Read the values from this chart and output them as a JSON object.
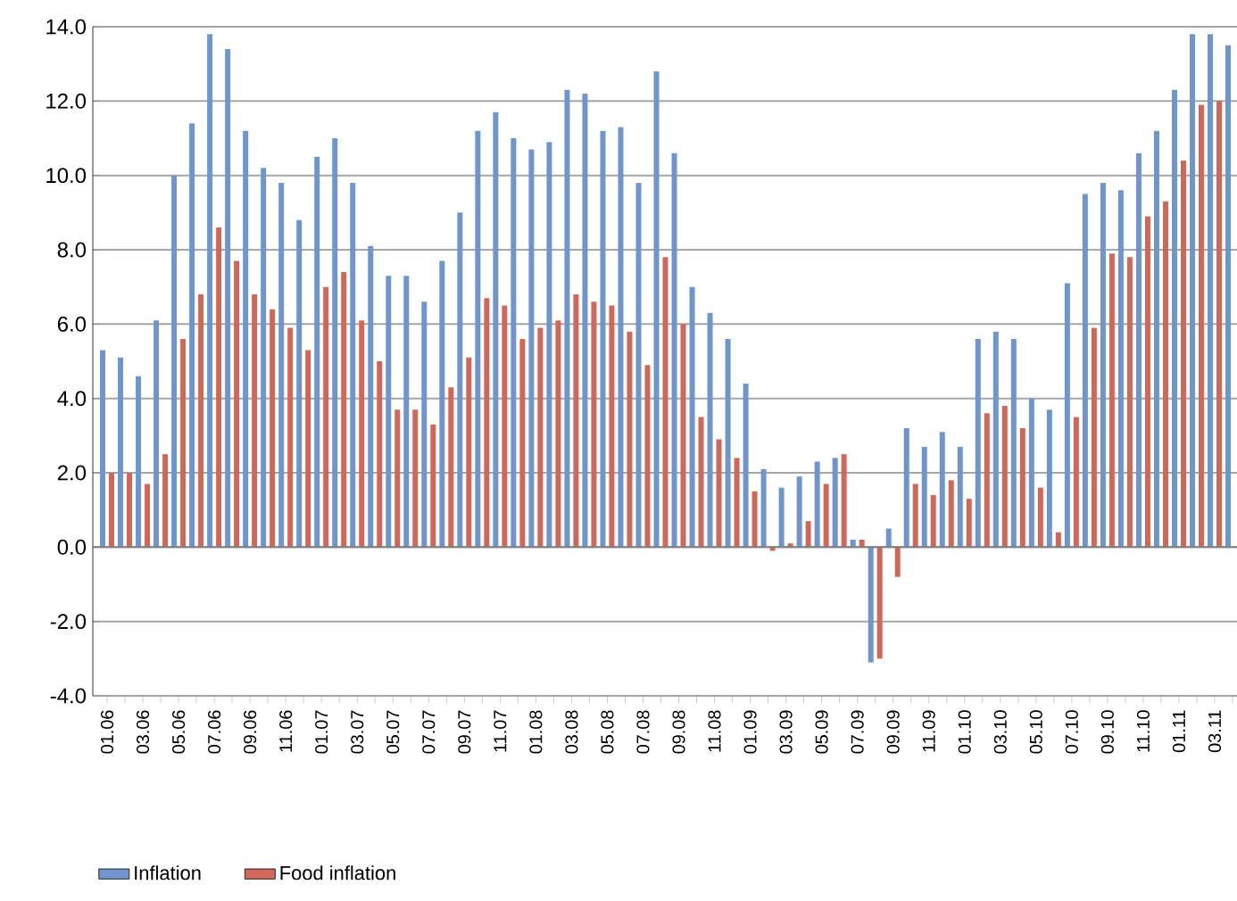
{
  "chart_data": {
    "type": "bar",
    "categories": [
      "01.06",
      null,
      "03.06",
      null,
      "05.06",
      null,
      "07.06",
      null,
      "09.06",
      null,
      "11.06",
      null,
      "01.07",
      null,
      "03.07",
      null,
      "05.07",
      null,
      "07.07",
      null,
      "09.07",
      null,
      "11.07",
      null,
      "01.08",
      null,
      "03.08",
      null,
      "05.08",
      null,
      "07.08",
      null,
      "09.08",
      null,
      "11.08",
      null,
      "01.09",
      null,
      "03.09",
      null,
      "05.09",
      null,
      "07.09",
      null,
      "09.09",
      null,
      "11.09",
      null,
      "01.10",
      null,
      "03.10",
      null,
      "05.10",
      null,
      "07.10",
      null,
      "09.10",
      null,
      "11.10",
      null,
      "01.11",
      null,
      "03.11",
      null
    ],
    "series": [
      {
        "name": "Inflation",
        "color": "#6f95cc",
        "values": [
          5.3,
          5.1,
          4.6,
          6.1,
          10.0,
          11.4,
          13.8,
          13.4,
          11.2,
          10.2,
          9.8,
          8.8,
          10.5,
          11.0,
          9.8,
          8.1,
          7.3,
          7.3,
          6.6,
          7.7,
          9.0,
          11.2,
          11.7,
          11.0,
          10.7,
          10.9,
          12.3,
          12.2,
          11.2,
          11.3,
          9.8,
          12.8,
          10.6,
          7.0,
          6.3,
          5.6,
          4.4,
          2.1,
          1.6,
          1.9,
          2.3,
          2.4,
          0.2,
          -3.1,
          0.5,
          3.2,
          2.7,
          3.1,
          2.7,
          5.6,
          5.8,
          5.6,
          4.0,
          3.7,
          7.1,
          9.5,
          9.8,
          9.6,
          10.6,
          11.2,
          12.3,
          13.8,
          13.8,
          13.5
        ]
      },
      {
        "name": "Food inflation",
        "color": "#d0675b",
        "values": [
          2.0,
          2.0,
          1.7,
          2.5,
          5.6,
          6.8,
          8.6,
          7.7,
          6.8,
          6.4,
          5.9,
          5.3,
          7.0,
          7.4,
          6.1,
          5.0,
          3.7,
          3.7,
          3.3,
          4.3,
          5.1,
          6.7,
          6.5,
          5.6,
          5.9,
          6.1,
          6.8,
          6.6,
          6.5,
          5.8,
          4.9,
          7.8,
          6.0,
          3.5,
          2.9,
          2.4,
          1.5,
          -0.1,
          0.1,
          0.7,
          1.7,
          2.5,
          0.2,
          -3.0,
          -0.8,
          1.7,
          1.4,
          1.8,
          1.3,
          3.6,
          3.8,
          3.2,
          1.6,
          0.4,
          3.5,
          5.9,
          7.9,
          7.8,
          8.9,
          9.3,
          10.4,
          11.9,
          12.0,
          null
        ]
      }
    ],
    "ylim": [
      -4,
      14
    ],
    "yticks": [
      {
        "value": -4,
        "label": "-4.0"
      },
      {
        "value": -2,
        "label": "-2.0"
      },
      {
        "value": 0,
        "label": "0.0"
      },
      {
        "value": 2,
        "label": "2.0"
      },
      {
        "value": 4,
        "label": "4.0"
      },
      {
        "value": 6,
        "label": "6.0"
      },
      {
        "value": 8,
        "label": "8.0"
      },
      {
        "value": 10,
        "label": "10.0"
      },
      {
        "value": 12,
        "label": "12.0"
      },
      {
        "value": 14,
        "label": "14.0"
      }
    ],
    "grid": "y",
    "legend": "bottom left"
  }
}
